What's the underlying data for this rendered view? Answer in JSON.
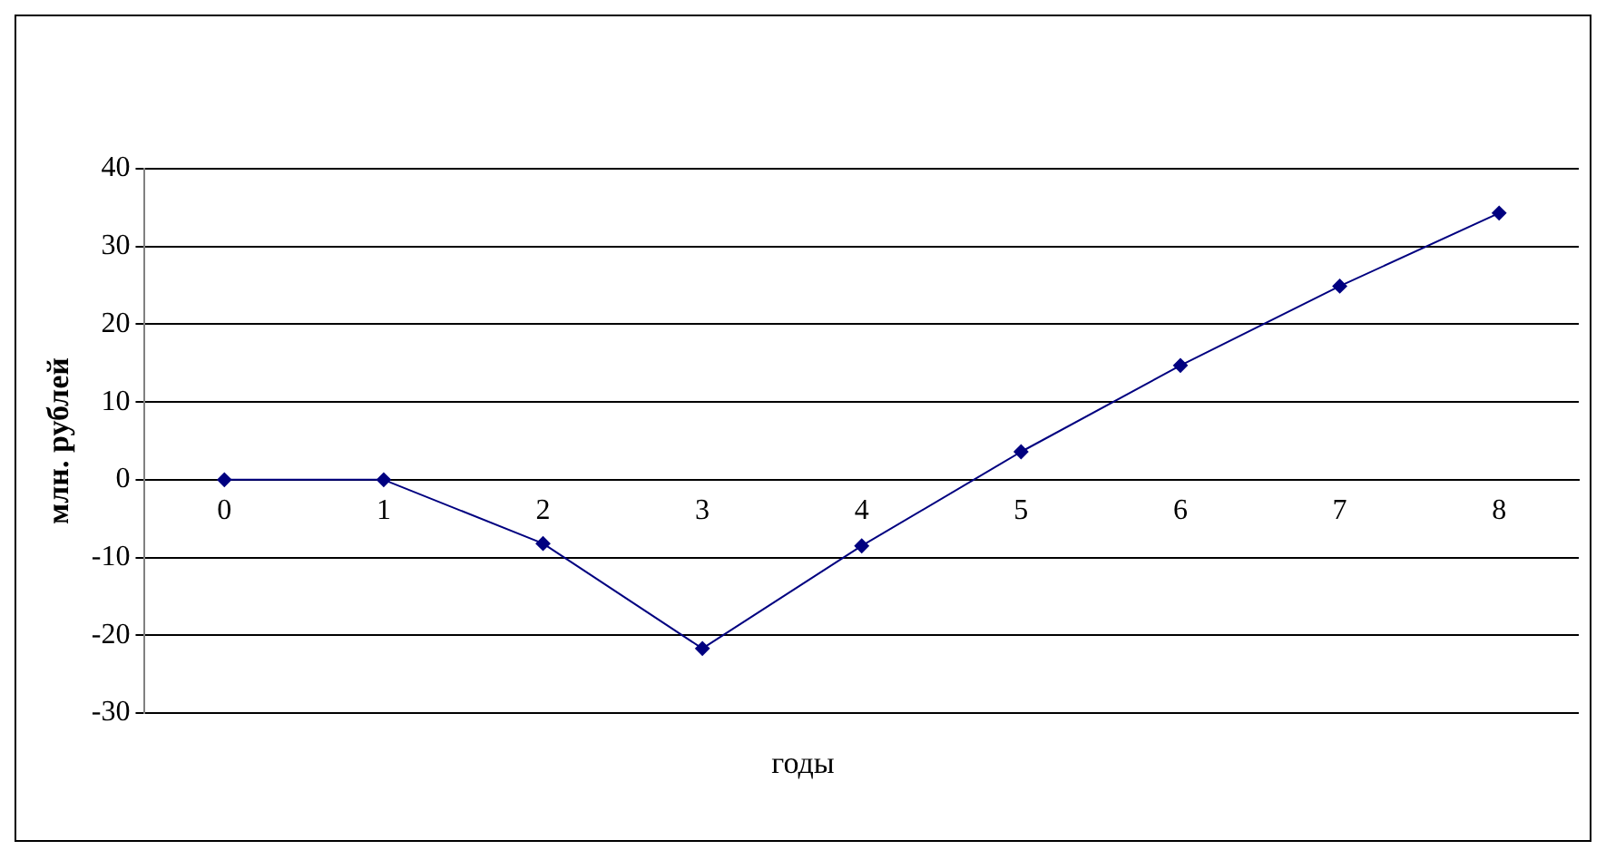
{
  "chart_data": {
    "type": "line",
    "xlabel": "годы",
    "ylabel": "млн. рублей",
    "categories": [
      "0",
      "1",
      "2",
      "3",
      "4",
      "5",
      "6",
      "7",
      "8"
    ],
    "series": [
      {
        "color": "#000080",
        "values": [
          0,
          0,
          -8.2,
          -21.7,
          -8.5,
          3.6,
          14.7,
          24.9,
          34.3
        ]
      }
    ],
    "ylim": [
      -30,
      40
    ],
    "yticks": [
      -30,
      -20,
      -10,
      0,
      10,
      20,
      30,
      40
    ],
    "grid": "y",
    "legend": false,
    "marker": "diamond",
    "line_style": "solid"
  }
}
